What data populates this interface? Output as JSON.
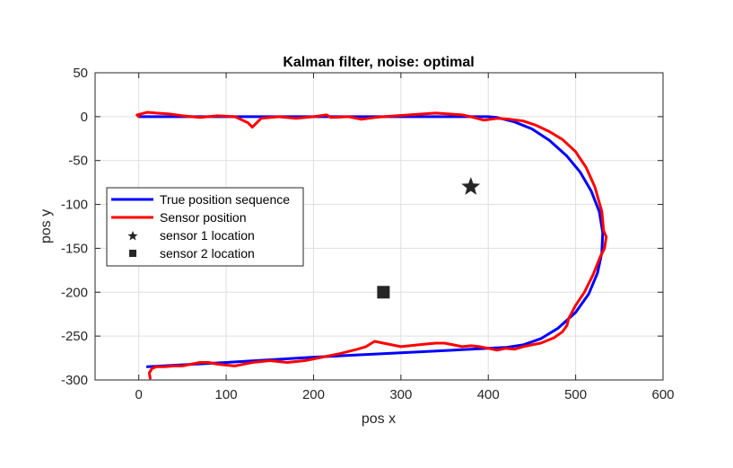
{
  "chart_data": {
    "type": "line",
    "title": "Kalman filter, noise: optimal",
    "xlabel": "pos x",
    "ylabel": "pos y",
    "xlim": [
      -50,
      600
    ],
    "ylim": [
      -300,
      50
    ],
    "xticks": [
      0,
      100,
      200,
      300,
      400,
      500,
      600
    ],
    "yticks": [
      -300,
      -250,
      -200,
      -150,
      -100,
      -50,
      0,
      50
    ],
    "grid": true,
    "legend_position": "left",
    "series": [
      {
        "name": "True position sequence",
        "color": "#0000ff",
        "style": "line",
        "x": [
          0,
          100,
          200,
          300,
          400,
          410,
          430,
          450,
          470,
          490,
          505,
          518,
          527,
          531,
          530,
          525,
          515,
          500,
          480,
          460,
          440,
          420,
          400,
          300,
          200,
          100,
          10
        ],
        "y": [
          0,
          0,
          0,
          0,
          0,
          -1,
          -6,
          -14,
          -27,
          -45,
          -63,
          -85,
          -108,
          -132,
          -155,
          -178,
          -202,
          -223,
          -241,
          -253,
          -260,
          -263,
          -264,
          -269,
          -274,
          -280,
          -285
        ]
      },
      {
        "name": "Sensor position",
        "color": "#ff0000",
        "style": "line",
        "x": [
          0,
          -2,
          10,
          20,
          35,
          50,
          70,
          90,
          110,
          125,
          130,
          140,
          160,
          180,
          200,
          215,
          220,
          240,
          255,
          270,
          280,
          295,
          310,
          325,
          340,
          355,
          370,
          380,
          395,
          410,
          425,
          440,
          455,
          470,
          485,
          500,
          512,
          522,
          530,
          532,
          535,
          533,
          528,
          520,
          510,
          500,
          492,
          490,
          485,
          475,
          460,
          450,
          440,
          430,
          420,
          410,
          400,
          390,
          380,
          370,
          360,
          350,
          340,
          330,
          320,
          300,
          280,
          270,
          260,
          250,
          230,
          210,
          190,
          170,
          150,
          130,
          110,
          90,
          80,
          70,
          60,
          50,
          40,
          30,
          20,
          15,
          12,
          13
        ],
        "y": [
          0,
          2,
          5,
          4,
          3,
          1,
          -1,
          1,
          0,
          -7,
          -12,
          -2,
          0,
          -2,
          0,
          2,
          -1,
          0,
          -3,
          -1,
          0,
          1,
          2,
          3,
          4,
          3,
          2,
          0,
          -4,
          -2,
          -3,
          -5,
          -10,
          -17,
          -26,
          -40,
          -58,
          -80,
          -108,
          -130,
          -137,
          -150,
          -160,
          -180,
          -200,
          -215,
          -230,
          -238,
          -245,
          -252,
          -258,
          -260,
          -262,
          -265,
          -264,
          -266,
          -264,
          -262,
          -261,
          -262,
          -260,
          -258,
          -258,
          -259,
          -260,
          -262,
          -258,
          -256,
          -262,
          -265,
          -270,
          -274,
          -278,
          -280,
          -278,
          -280,
          -284,
          -282,
          -280,
          -280,
          -282,
          -284,
          -284,
          -285,
          -285,
          -287,
          -292,
          -298
        ]
      },
      {
        "name": "sensor 1 location",
        "color": "#262626",
        "style": "marker",
        "marker": "star",
        "x": [
          380
        ],
        "y": [
          -80
        ]
      },
      {
        "name": "sensor 2 location",
        "color": "#262626",
        "style": "marker",
        "marker": "square",
        "x": [
          280
        ],
        "y": [
          -200
        ]
      }
    ]
  }
}
